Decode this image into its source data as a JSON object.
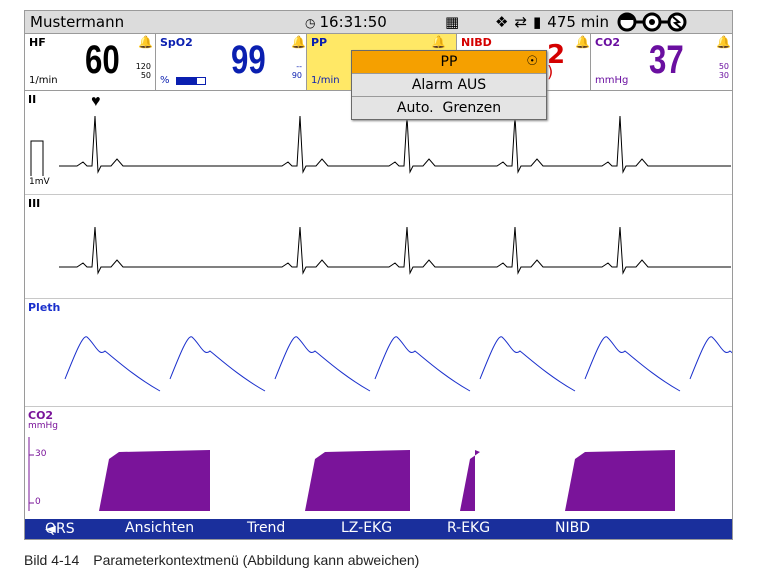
{
  "topbar": {
    "patient": "Mustermann",
    "clock_icon": "clock-icon",
    "time": "16:31:50",
    "status_icons": [
      "sim-card-icon",
      "wireless-icon",
      "transfer-icon",
      "battery-icon"
    ],
    "runtime": "475 min",
    "connection_icon": "connection-chain-icon"
  },
  "params": {
    "hf": {
      "name": "HF",
      "value": "60",
      "unit": "1/min",
      "high": "120",
      "low": "50",
      "color": "#000000"
    },
    "spo2": {
      "name": "SpO2",
      "value": "99",
      "unit": "%",
      "high": "--",
      "low": "90",
      "color": "#0a1fb0"
    },
    "pp": {
      "name": "PP",
      "unit": "1/min",
      "color": "#0a1fb0",
      "bg": "#ffe866"
    },
    "nibd": {
      "name": "NIBD",
      "fragment": "2",
      "fragment2": ")",
      "color": "#d40000"
    },
    "co2": {
      "name": "CO2",
      "value": "37",
      "unit": "mmHg",
      "high": "50",
      "low": "30",
      "color": "#6a0fa0"
    }
  },
  "waves": {
    "ecg1": {
      "label": "II",
      "scale": "1mV"
    },
    "ecg2": {
      "label": "III"
    },
    "pleth": {
      "label": "Pleth",
      "color": "#1a2fcc"
    },
    "co2": {
      "label": "CO2",
      "unit": "mmHg",
      "tick_high": "30",
      "tick_low": "0",
      "color": "#7a149a"
    }
  },
  "menu": {
    "items": [
      {
        "label": "PP",
        "selected": true
      },
      {
        "label": "Alarm AUS",
        "selected": false
      },
      {
        "label": "Auto.  Grenzen",
        "selected": false
      }
    ]
  },
  "bottombar": {
    "items": [
      "QRS",
      "Ansichten",
      "Trend",
      "LZ-EKG",
      "R-EKG",
      "NIBD"
    ],
    "qrs_icon": "speaker-icon"
  },
  "caption": {
    "number": "Bild 4-14",
    "text": "Parameterkontextmenü (Abbildung kann abweichen)"
  }
}
